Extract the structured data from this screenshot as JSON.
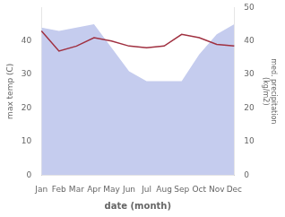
{
  "chart_data": {
    "type": "line",
    "xlabel": "date (month)",
    "ylabel": "max temp (C)",
    "y2label": "med. precipitation\n(kg/m2)",
    "categories": [
      "Jan",
      "Feb",
      "Mar",
      "Apr",
      "May",
      "Jun",
      "Jul",
      "Aug",
      "Sep",
      "Oct",
      "Nov",
      "Dec"
    ],
    "series": [
      {
        "type": "area",
        "color": "#c5ccee",
        "values": [
          44,
          43,
          44,
          45,
          38,
          31,
          28,
          28,
          28,
          36,
          42,
          45
        ]
      },
      {
        "type": "line",
        "color": "#a03040",
        "axis": "y2",
        "values": [
          43,
          37,
          38.5,
          41,
          40,
          38.5,
          38,
          38.5,
          42,
          41,
          39,
          38.5
        ]
      }
    ],
    "ylim": [
      0,
      50
    ],
    "yticks": [
      0,
      10,
      20,
      30,
      40
    ],
    "y2lim": [
      0,
      50
    ],
    "y2ticks": [
      0,
      10,
      20,
      30,
      40,
      50
    ],
    "grid": false
  }
}
